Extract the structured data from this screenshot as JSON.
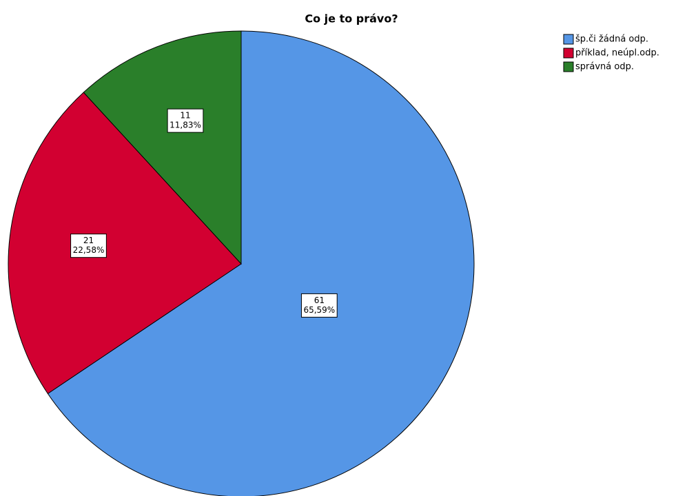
{
  "chart_data": {
    "type": "pie",
    "title": "Co je to právo?",
    "categories": [
      "šp.či žádná odp.",
      "příklad, neúpl.odp.",
      "správná odp."
    ],
    "values": [
      61,
      21,
      11
    ],
    "percent_labels": [
      "65,59%",
      "22,58%",
      "11,83%"
    ],
    "colors": [
      "#5596e6",
      "#d20031",
      "#2a7f2a"
    ],
    "legend": "top-right"
  }
}
